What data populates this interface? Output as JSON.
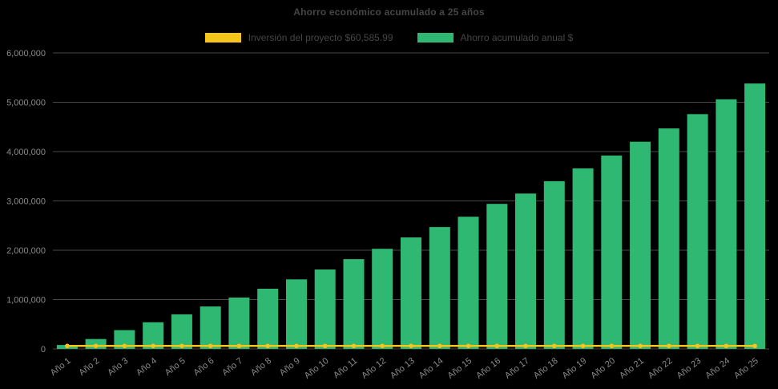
{
  "page": {
    "background": "#000000"
  },
  "chart_data": {
    "type": "bar",
    "title": "Ahorro económico acumulado a 25 años",
    "xlabel": "",
    "ylabel": "",
    "grid": true,
    "legend_position": "top",
    "ylim": [
      0,
      6000000
    ],
    "yticks": [
      0,
      1000000,
      2000000,
      3000000,
      4000000,
      5000000,
      6000000
    ],
    "ytick_labels": [
      "0",
      "1,000,000",
      "2,000,000",
      "3,000,000",
      "4,000,000",
      "5,000,000",
      "6,000,000"
    ],
    "categories": [
      "Año 1",
      "Año 2",
      "Año 3",
      "Año 4",
      "Año 5",
      "Año 6",
      "Año 7",
      "Año 8",
      "Año 9",
      "Año 10",
      "Año 11",
      "Año 12",
      "Año 13",
      "Año 14",
      "Año 15",
      "Año 16",
      "Año 17",
      "Año 18",
      "Año 19",
      "Año 20",
      "Año 21",
      "Año 22",
      "Año 23",
      "Año 24",
      "Año 25"
    ],
    "series": [
      {
        "name": "Inversión del proyecto $60,585.99",
        "type": "line",
        "color": "#f5c51a",
        "constant_value": 60585.99
      },
      {
        "name": "Ahorro acumulado anual $",
        "type": "bar",
        "color": "#2eb872",
        "values": [
          80000,
          200000,
          380000,
          540000,
          700000,
          860000,
          1040000,
          1220000,
          1410000,
          1610000,
          1820000,
          2030000,
          2260000,
          2470000,
          2680000,
          2940000,
          3150000,
          3400000,
          3660000,
          3920000,
          4200000,
          4470000,
          4760000,
          5060000,
          5380000
        ]
      }
    ]
  }
}
